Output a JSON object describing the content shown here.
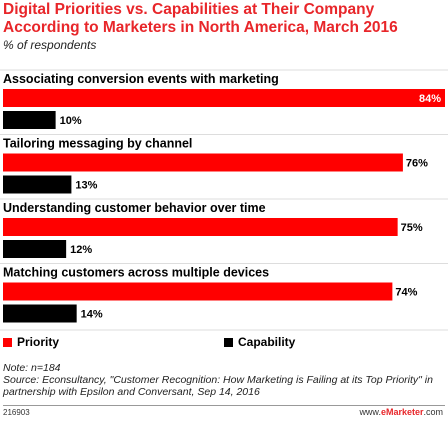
{
  "title": "Digital Priorities vs. Capabilities at Their Company According to Marketers in North America, March 2016",
  "subtitle": "% of respondents",
  "legend": {
    "priority": "Priority",
    "capability": "Capability"
  },
  "colors": {
    "priority": "#ff0000",
    "capability": "#000000",
    "title": "#e8262a"
  },
  "note": "Note: n=184",
  "source": "Source: Econsultancy, \"Customer Recognition: How Marketing is Failing at its Top Priority\" in partnership with Epsilon and Conversant, Sep 14, 2016",
  "footer": {
    "id": "216903",
    "brand_prefix": "www.",
    "brand_name": "eMarketer",
    "brand_suffix": ".com"
  },
  "chart_data": {
    "type": "bar",
    "orientation": "horizontal",
    "categories": [
      "Associating conversion events with marketing",
      "Tailoring messaging by channel",
      "Understanding customer behavior over time",
      "Matching customers across multiple devices"
    ],
    "series": [
      {
        "name": "Priority",
        "values": [
          84,
          76,
          75,
          74
        ],
        "labels": [
          "84%",
          "76%",
          "75%",
          "74%"
        ]
      },
      {
        "name": "Capability",
        "values": [
          10,
          13,
          12,
          14
        ],
        "labels": [
          "10%",
          "13%",
          "12%",
          "14%"
        ]
      }
    ],
    "xlim": [
      0,
      84
    ]
  }
}
